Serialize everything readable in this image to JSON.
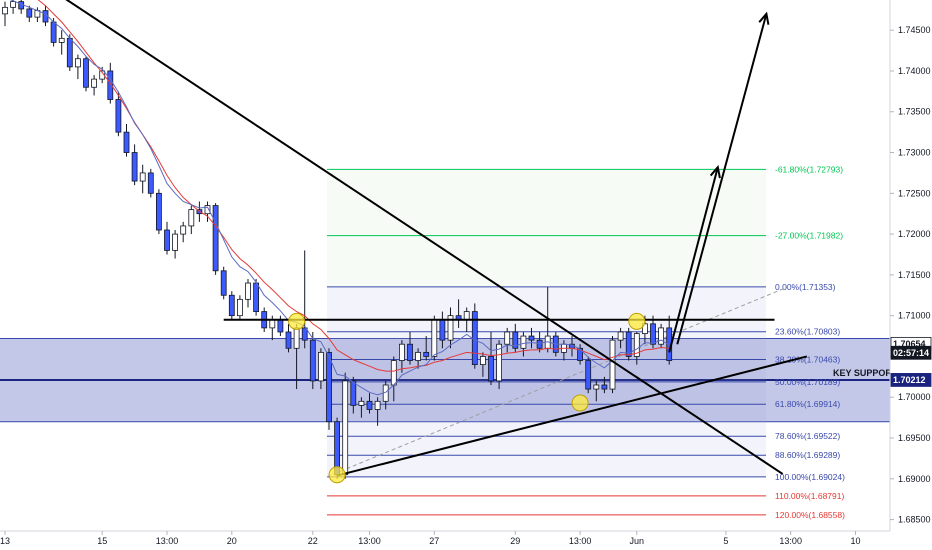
{
  "chart_data": {
    "type": "candlestick",
    "y_axis": {
      "range": [
        1.6836,
        1.7487
      ],
      "ticks": [
        "1.74500",
        "1.74000",
        "1.73500",
        "1.73000",
        "1.72500",
        "1.72000",
        "1.71500",
        "1.71000",
        "1.70500",
        "1.70000",
        "1.69500",
        "1.69000",
        "1.68500"
      ]
    },
    "x_axis": {
      "ticks": [
        {
          "label": "13",
          "bar": 0
        },
        {
          "label": "15",
          "bar": 12
        },
        {
          "label": "13:00",
          "bar": 20
        },
        {
          "label": "20",
          "bar": 28
        },
        {
          "label": "22",
          "bar": 38
        },
        {
          "label": "13:00",
          "bar": 45
        },
        {
          "label": "27",
          "bar": 53
        },
        {
          "label": "29",
          "bar": 63
        },
        {
          "label": "13:00",
          "bar": 71
        },
        {
          "label": "Jun",
          "bar": 78
        },
        {
          "label": "5",
          "bar": 89
        },
        {
          "label": "13:00",
          "bar": 97
        },
        {
          "label": "10",
          "bar": 105
        }
      ]
    },
    "candles": [
      [
        1.747,
        1.7485,
        1.7455,
        1.7478
      ],
      [
        1.7478,
        1.749,
        1.747,
        1.7485
      ],
      [
        1.7485,
        1.749,
        1.747,
        1.7476
      ],
      [
        1.7476,
        1.748,
        1.746,
        1.7466
      ],
      [
        1.7466,
        1.7478,
        1.746,
        1.7474
      ],
      [
        1.7474,
        1.748,
        1.7455,
        1.746
      ],
      [
        1.746,
        1.7465,
        1.743,
        1.7435
      ],
      [
        1.7435,
        1.745,
        1.742,
        1.744
      ],
      [
        1.744,
        1.7445,
        1.74,
        1.7405
      ],
      [
        1.7405,
        1.742,
        1.739,
        1.7415
      ],
      [
        1.7415,
        1.7418,
        1.7375,
        1.738
      ],
      [
        1.738,
        1.7395,
        1.737,
        1.739
      ],
      [
        1.739,
        1.7405,
        1.7385,
        1.74
      ],
      [
        1.74,
        1.741,
        1.736,
        1.7365
      ],
      [
        1.7365,
        1.7375,
        1.732,
        1.7325
      ],
      [
        1.7325,
        1.7335,
        1.7295,
        1.73
      ],
      [
        1.73,
        1.731,
        1.726,
        1.7265
      ],
      [
        1.7265,
        1.7285,
        1.725,
        1.7275
      ],
      [
        1.7275,
        1.728,
        1.7245,
        1.725
      ],
      [
        1.725,
        1.7255,
        1.72,
        1.7205
      ],
      [
        1.7205,
        1.7215,
        1.7175,
        1.718
      ],
      [
        1.718,
        1.7205,
        1.717,
        1.72
      ],
      [
        1.72,
        1.7215,
        1.719,
        1.721
      ],
      [
        1.721,
        1.7235,
        1.72,
        1.723
      ],
      [
        1.723,
        1.724,
        1.7215,
        1.7225
      ],
      [
        1.7225,
        1.724,
        1.7215,
        1.7235
      ],
      [
        1.7235,
        1.7238,
        1.715,
        1.7155
      ],
      [
        1.7155,
        1.716,
        1.712,
        1.7125
      ],
      [
        1.7125,
        1.713,
        1.7095,
        1.71
      ],
      [
        1.71,
        1.7125,
        1.7095,
        1.712
      ],
      [
        1.712,
        1.7145,
        1.711,
        1.714
      ],
      [
        1.714,
        1.7145,
        1.71,
        1.7105
      ],
      [
        1.7105,
        1.711,
        1.708,
        1.7085
      ],
      [
        1.7085,
        1.71,
        1.707,
        1.7095
      ],
      [
        1.7095,
        1.71,
        1.7075,
        1.708
      ],
      [
        1.708,
        1.709,
        1.7055,
        1.706
      ],
      [
        1.706,
        1.709,
        1.701,
        1.7085
      ],
      [
        1.7085,
        1.718,
        1.706,
        1.707
      ],
      [
        1.707,
        1.708,
        1.701,
        1.702
      ],
      [
        1.702,
        1.706,
        1.701,
        1.7055
      ],
      [
        1.7055,
        1.706,
        1.696,
        1.697
      ],
      [
        1.697,
        1.6975,
        1.69,
        1.6905
      ],
      [
        1.6905,
        1.703,
        1.69,
        1.702
      ],
      [
        1.702,
        1.7025,
        1.698,
        1.699
      ],
      [
        1.699,
        1.7,
        1.6975,
        1.6995
      ],
      [
        1.6995,
        1.7005,
        1.698,
        1.6985
      ],
      [
        1.6985,
        1.7,
        1.6965,
        1.6995
      ],
      [
        1.6995,
        1.702,
        1.6985,
        1.7015
      ],
      [
        1.7015,
        1.705,
        1.6995,
        1.7045
      ],
      [
        1.7045,
        1.707,
        1.703,
        1.7065
      ],
      [
        1.7065,
        1.708,
        1.704,
        1.7045
      ],
      [
        1.7045,
        1.706,
        1.7035,
        1.7055
      ],
      [
        1.7055,
        1.7075,
        1.7045,
        1.705
      ],
      [
        1.705,
        1.71,
        1.7045,
        1.7095
      ],
      [
        1.7095,
        1.7105,
        1.706,
        1.707
      ],
      [
        1.707,
        1.711,
        1.706,
        1.71
      ],
      [
        1.71,
        1.712,
        1.7085,
        1.7095
      ],
      [
        1.7095,
        1.711,
        1.708,
        1.7105
      ],
      [
        1.7105,
        1.7115,
        1.7035,
        1.704
      ],
      [
        1.704,
        1.7055,
        1.7025,
        1.705
      ],
      [
        1.705,
        1.708,
        1.7015,
        1.702
      ],
      [
        1.702,
        1.707,
        1.701,
        1.7065
      ],
      [
        1.7065,
        1.7085,
        1.7055,
        1.708
      ],
      [
        1.708,
        1.709,
        1.7055,
        1.706
      ],
      [
        1.706,
        1.708,
        1.705,
        1.7075
      ],
      [
        1.7075,
        1.7085,
        1.706,
        1.707
      ],
      [
        1.707,
        1.708,
        1.7055,
        1.706
      ],
      [
        1.706,
        1.7135,
        1.7055,
        1.7075
      ],
      [
        1.7075,
        1.708,
        1.705,
        1.7055
      ],
      [
        1.7055,
        1.707,
        1.7045,
        1.7065
      ],
      [
        1.7065,
        1.7075,
        1.705,
        1.706
      ],
      [
        1.706,
        1.7065,
        1.704,
        1.7045
      ],
      [
        1.7045,
        1.705,
        1.7005,
        1.701
      ],
      [
        1.701,
        1.702,
        1.6995,
        1.7015
      ],
      [
        1.7015,
        1.7025,
        1.7005,
        1.701
      ],
      [
        1.701,
        1.7075,
        1.7005,
        1.707
      ],
      [
        1.707,
        1.7085,
        1.706,
        1.708
      ],
      [
        1.708,
        1.7085,
        1.7045,
        1.705
      ],
      [
        1.705,
        1.708,
        1.704,
        1.7078
      ],
      [
        1.7078,
        1.71,
        1.7065,
        1.709
      ],
      [
        1.709,
        1.71,
        1.706,
        1.7065
      ],
      [
        1.7065,
        1.709,
        1.706,
        1.7085
      ],
      [
        1.7085,
        1.71,
        1.704,
        1.7045
      ]
    ],
    "moving_averages": [
      {
        "color": "#e53935",
        "values": [
          1.752,
          1.7512,
          1.7504,
          1.7496,
          1.7488,
          1.748,
          1.747,
          1.746,
          1.7448,
          1.7436,
          1.7423,
          1.741,
          1.7398,
          1.7385,
          1.737,
          1.7354,
          1.7337,
          1.7322,
          1.7307,
          1.729,
          1.7272,
          1.7257,
          1.7245,
          1.7236,
          1.7228,
          1.7222,
          1.721,
          1.7196,
          1.7181,
          1.717,
          1.7162,
          1.7152,
          1.7141,
          1.7132,
          1.7122,
          1.7112,
          1.7105,
          1.71,
          1.709,
          1.7083,
          1.7072,
          1.7058,
          1.7052,
          1.7046,
          1.7042,
          1.7038,
          1.7034,
          1.7032,
          1.7032,
          1.7035,
          1.7036,
          1.7038,
          1.7039,
          1.7043,
          1.7045,
          1.7049,
          1.7052,
          1.7055,
          1.7054,
          1.7053,
          1.7051,
          1.7052,
          1.7054,
          1.7055,
          1.7057,
          1.7058,
          1.7058,
          1.706,
          1.7059,
          1.706,
          1.706,
          1.7058,
          1.7054,
          1.705,
          1.7046,
          1.7049,
          1.7052,
          1.7052,
          1.7054,
          1.7058,
          1.7059,
          1.7061,
          1.706
        ]
      },
      {
        "color": "#5c6bc0",
        "values": [
          1.749,
          1.7486,
          1.7482,
          1.7478,
          1.7474,
          1.747,
          1.746,
          1.7452,
          1.744,
          1.743,
          1.7418,
          1.7408,
          1.7402,
          1.739,
          1.7374,
          1.7356,
          1.7336,
          1.7322,
          1.7305,
          1.7284,
          1.7262,
          1.725,
          1.724,
          1.7236,
          1.7232,
          1.7233,
          1.7214,
          1.7193,
          1.7172,
          1.716,
          1.7154,
          1.7141,
          1.7125,
          1.7116,
          1.7106,
          1.7094,
          1.7092,
          1.7087,
          1.7072,
          1.7068,
          1.705,
          1.7028,
          1.7026,
          1.7018,
          1.7012,
          1.7006,
          1.7003,
          1.7006,
          1.7015,
          1.7027,
          1.7032,
          1.7037,
          1.704,
          1.7052,
          1.7056,
          1.7064,
          1.707,
          1.7077,
          1.707,
          1.7066,
          1.7057,
          1.7059,
          1.7064,
          1.7063,
          1.7066,
          1.7067,
          1.7066,
          1.7068,
          1.7065,
          1.7065,
          1.7064,
          1.7059,
          1.7049,
          1.7042,
          1.7036,
          1.7045,
          1.7055,
          1.7054,
          1.7059,
          1.7067,
          1.7066,
          1.707,
          1.7064
        ]
      }
    ],
    "fib_levels": [
      {
        "label": "-61.80%(1.72793)",
        "price": 1.72793,
        "color": "#00c853"
      },
      {
        "label": "-27.00%(1.71982)",
        "price": 1.71982,
        "color": "#00c853"
      },
      {
        "label": "0.00%(1.71353)",
        "price": 1.71353,
        "color": "#3949ab"
      },
      {
        "label": "23.60%(1.70803)",
        "price": 1.70803,
        "color": "#3949ab"
      },
      {
        "label": "38.20%(1.70463)",
        "price": 1.70463,
        "color": "#3949ab"
      },
      {
        "label": "50.00%(1.70189)",
        "price": 1.70189,
        "color": "#3949ab"
      },
      {
        "label": "61.80%(1.69914)",
        "price": 1.69914,
        "color": "#3949ab"
      },
      {
        "label": "78.60%(1.69522)",
        "price": 1.69522,
        "color": "#3949ab"
      },
      {
        "label": "88.60%(1.69289)",
        "price": 1.69289,
        "color": "#3949ab"
      },
      {
        "label": "100.00%(1.69024)",
        "price": 1.69024,
        "color": "#3949ab"
      },
      {
        "label": "110.00%(1.68791)",
        "price": 1.68791,
        "color": "#e53935"
      },
      {
        "label": "120.00%(1.68558)",
        "price": 1.68558,
        "color": "#e53935"
      }
    ],
    "support_zone": {
      "label": "KEY SUPPORT",
      "upper": 1.7072,
      "lower": 1.697,
      "line": 1.70212
    },
    "price_tags": [
      {
        "text": "1.70654",
        "price": 1.70654,
        "bg": "#ffffff",
        "fg": "#131722"
      },
      {
        "text": "02:57:14",
        "price": 1.70545,
        "bg": "#131722",
        "fg": "#ffffff"
      },
      {
        "text": "1.70212",
        "price": 1.70212,
        "bg": "#1a237e",
        "fg": "#ffffff"
      }
    ],
    "annotations": {
      "descending_trendline": {
        "from": [
          6,
          1.7498
        ],
        "to": [
          96,
          1.6906
        ]
      },
      "ascending_trendline": {
        "from": [
          41,
          1.6904
        ],
        "to": [
          99,
          1.705
        ]
      },
      "neckline": {
        "from": [
          27,
          1.7095
        ],
        "to": [
          95,
          1.7095
        ]
      },
      "circles": [
        [
          36,
          1.7093
        ],
        [
          41,
          1.6905
        ],
        [
          71,
          1.6993
        ],
        [
          78,
          1.7093
        ]
      ],
      "arrow_1": {
        "from": [
          82,
          1.7055
        ],
        "to": [
          88,
          1.7282
        ]
      },
      "arrow_2": {
        "from": [
          83,
          1.7065
        ],
        "to": [
          94,
          1.747
        ]
      }
    },
    "colors": {
      "up": "#ffffff",
      "down": "#3d5afe",
      "wick": "#131722"
    }
  }
}
